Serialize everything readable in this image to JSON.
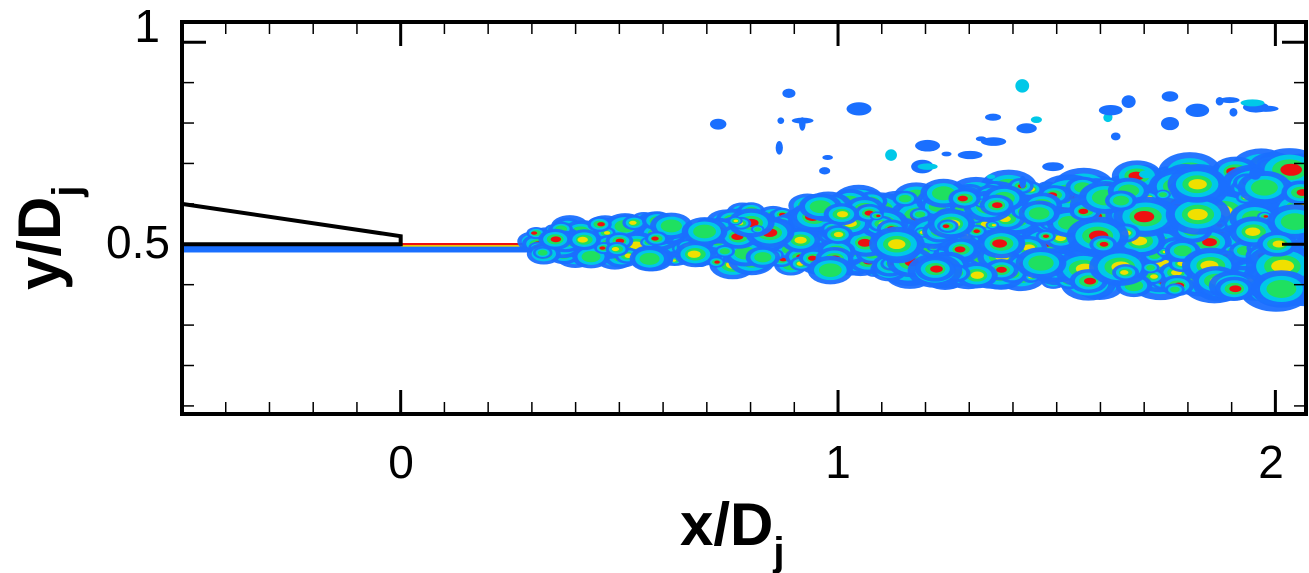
{
  "chart_data": {
    "type": "heatmap",
    "title": "",
    "xlabel_main": "x/D",
    "xlabel_sub": "j",
    "ylabel_main": "y/D",
    "ylabel_sub": "j",
    "xlim": [
      -0.5,
      2.07
    ],
    "ylim": [
      0.08,
      1.05
    ],
    "x_ticks": [
      {
        "value": 0,
        "label": "0"
      },
      {
        "value": 1,
        "label": "1"
      },
      {
        "value": 2,
        "label": "2"
      }
    ],
    "y_ticks": [
      {
        "value": 0.5,
        "label": "0.5"
      },
      {
        "value": 1,
        "label": "1"
      }
    ],
    "x_minor_step": 0.1,
    "y_minor_step": 0.1,
    "grid": false,
    "colors": {
      "low": "#1a6fff",
      "mid_low": "#00c8e8",
      "mid": "#1fe060",
      "mid_high": "#f0e000",
      "high": "#ee1010",
      "nozzle": "#000000"
    },
    "nozzle_lip": [
      {
        "x": -0.5,
        "y": 0.6
      },
      {
        "x": 0.0,
        "y": 0.52
      },
      {
        "x": 0.0,
        "y": 0.5
      },
      {
        "x": -0.5,
        "y": 0.5
      }
    ],
    "mixing_layer": {
      "center_y": 0.5,
      "start_x": 0.0,
      "end_x": 2.07,
      "half_width_start": 0.005,
      "half_width_end": 0.17
    }
  }
}
